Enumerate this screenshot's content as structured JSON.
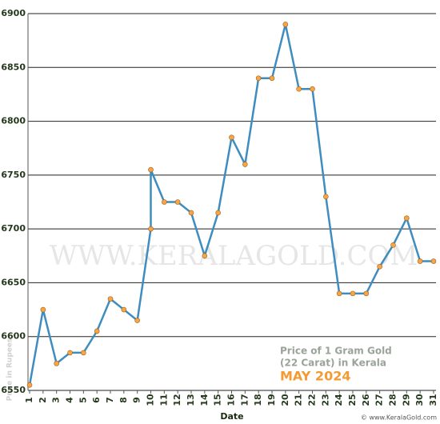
{
  "chart_data": {
    "type": "line",
    "x_label": "Date",
    "y_label": "Price in Rupees",
    "watermark": "WWW.KERALAGOLD.COM",
    "annotation_lines": [
      "Price of 1 Gram Gold",
      "(22 Carat) in Kerala"
    ],
    "annotation_highlight": "MAY 2024",
    "footer": "© www.KeralaGold.com",
    "x": [
      1,
      2,
      3,
      4,
      5,
      6,
      7,
      8,
      9,
      10,
      10,
      11,
      12,
      13,
      14,
      15,
      16,
      17,
      18,
      19,
      20,
      21,
      22,
      23,
      24,
      25,
      26,
      27,
      28,
      29,
      30,
      31
    ],
    "values": [
      6555,
      6625,
      6575,
      6585,
      6585,
      6605,
      6635,
      6625,
      6615,
      6700,
      6755,
      6725,
      6725,
      6715,
      6675,
      6715,
      6785,
      6760,
      6840,
      6840,
      6890,
      6830,
      6830,
      6730,
      6640,
      6640,
      6640,
      6665,
      6685,
      6710,
      6670,
      6670
    ],
    "color": "#3f8cbf",
    "marker_color": "#f7a545",
    "xlim": [
      0.88,
      31.18
    ],
    "xticks": [
      1,
      2,
      3,
      4,
      5,
      6,
      7,
      8,
      9,
      10,
      11,
      12,
      13,
      14,
      15,
      16,
      17,
      18,
      19,
      20,
      21,
      22,
      23,
      24,
      25,
      26,
      27,
      28,
      29,
      30,
      31
    ],
    "ylim": [
      6550,
      6900
    ],
    "yticks": [
      6550,
      6600,
      6650,
      6700,
      6750,
      6800,
      6850,
      6900
    ],
    "grid": true
  }
}
